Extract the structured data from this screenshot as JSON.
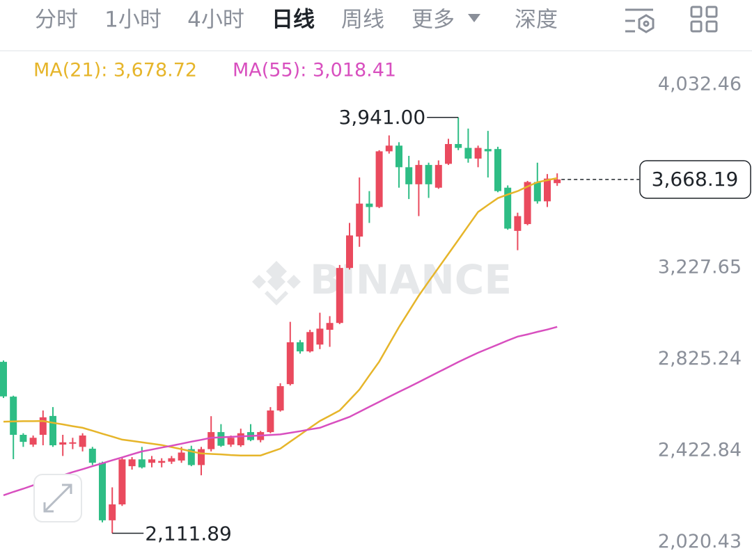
{
  "tabs": [
    "分时",
    "1小时",
    "4小时",
    "日线",
    "周线",
    "更多",
    "深度"
  ],
  "active_tab": 3,
  "watermark": "BINANCE",
  "chart_data": {
    "type": "candlestick",
    "up_color": "#ea4a5e",
    "down_color": "#2ebd85",
    "open": [
      2866,
      2713,
      2545,
      2502,
      2545,
      2628,
      2502,
      2509,
      2492,
      2484,
      2422,
      2169,
      2239,
      2407,
      2437,
      2422,
      2422,
      2427,
      2432,
      2482,
      2412,
      2482,
      2557,
      2502,
      2499,
      2557,
      2522,
      2557,
      2652,
      2768,
      2952,
      2912,
      2942,
      3007,
      3037,
      3279,
      3417,
      3562,
      3547,
      3792,
      3817,
      3722,
      3647,
      3732,
      3632,
      3737,
      3824,
      3807,
      3760,
      3802,
      3802,
      3632,
      3442,
      3472,
      3657,
      3572,
      3652
    ],
    "high": [
      2872,
      2717,
      2552,
      2542,
      2652,
      2667,
      2545,
      2532,
      2552,
      2492,
      2427,
      2314,
      2447,
      2447,
      2492,
      2452,
      2442,
      2452,
      2492,
      2497,
      2492,
      2627,
      2592,
      2542,
      2572,
      2592,
      2562,
      2667,
      2772,
      3042,
      2962,
      3007,
      3082,
      3067,
      3292,
      3477,
      3677,
      3617,
      3797,
      3862,
      3832,
      3772,
      3752,
      3742,
      3752,
      3847,
      3941,
      3892,
      3817,
      3882,
      3812,
      3642,
      3522,
      3662,
      3742,
      3692,
      3695
    ],
    "low": [
      2707,
      2438,
      2492,
      2492,
      2499,
      2492,
      2452,
      2482,
      2472,
      2412,
      2160,
      2111.89,
      2232,
      2392,
      2397,
      2402,
      2402,
      2417,
      2422,
      2407,
      2367,
      2472,
      2492,
      2492,
      2492,
      2517,
      2512,
      2552,
      2647,
      2762,
      2902,
      2907,
      2922,
      2932,
      3032,
      3272,
      3372,
      3477,
      3542,
      3782,
      3632,
      3582,
      3507,
      3587,
      3627,
      3732,
      3797,
      3742,
      3722,
      3677,
      3612,
      3447,
      3357,
      3467,
      3562,
      3547,
      3640
    ],
    "close": [
      2714,
      2545,
      2514,
      2532,
      2622,
      2499,
      2512,
      2512,
      2542,
      2422,
      2169,
      2239,
      2437,
      2437,
      2402,
      2437,
      2430,
      2442,
      2467,
      2412,
      2482,
      2557,
      2497,
      2532,
      2552,
      2522,
      2557,
      2652,
      2759,
      2952,
      2912,
      2997,
      3012,
      3037,
      3279,
      3422,
      3562,
      3547,
      3792,
      3817,
      3722,
      3647,
      3732,
      3647,
      3732,
      3824,
      3807,
      3760,
      3807,
      3792,
      3617,
      3452,
      3507,
      3657,
      3572,
      3672,
      3668.19
    ],
    "series": [
      {
        "name": "MA(21): 3,678.72",
        "color": "#e6b52a",
        "values": [
          2603,
          2604,
          2605,
          2605,
          2606,
          2598,
          2591,
          2583,
          2576,
          2563,
          2550,
          2537,
          2524,
          2518,
          2512,
          2506,
          2500,
          2491,
          2482,
          2472,
          2463,
          2461,
          2459,
          2456,
          2454,
          2454,
          2454,
          2469,
          2484,
          2515,
          2545,
          2576,
          2606,
          2629,
          2652,
          2698,
          2744,
          2806,
          2867,
          2943,
          3019,
          3088,
          3157,
          3219,
          3280,
          3341,
          3402,
          3464,
          3525,
          3556,
          3586,
          3602,
          3617,
          3637,
          3656,
          3665,
          3674
        ]
      },
      {
        "name": "MA(55): 3,018.41",
        "color": "#d84fbf",
        "values": [
          2279,
          2294,
          2308,
          2323,
          2337,
          2352,
          2367,
          2381,
          2394,
          2407,
          2420,
          2433,
          2446,
          2459,
          2472,
          2480,
          2489,
          2497,
          2506,
          2515,
          2523,
          2532,
          2534,
          2536,
          2538,
          2540,
          2542,
          2544,
          2547,
          2554,
          2561,
          2569,
          2576,
          2592,
          2608,
          2624,
          2646,
          2668,
          2690,
          2712,
          2734,
          2755,
          2777,
          2799,
          2821,
          2843,
          2865,
          2886,
          2906,
          2924,
          2942,
          2960,
          2977,
          2987,
          2998,
          3008,
          3020
        ]
      }
    ],
    "high_label": "3,941.00",
    "low_label": "2,111.89",
    "last_close_label": "3,668.19",
    "ylim": [
      2034,
      4228
    ],
    "yticks": [
      {
        "value": 4032.46,
        "label": "4,032.46"
      },
      {
        "value": 3227.65,
        "label": "3,227.65"
      },
      {
        "value": 2825.24,
        "label": "2,825.24"
      },
      {
        "value": 2422.84,
        "label": "2,422.84"
      },
      {
        "value": 2020.43,
        "label": "2,020.43"
      }
    ]
  }
}
